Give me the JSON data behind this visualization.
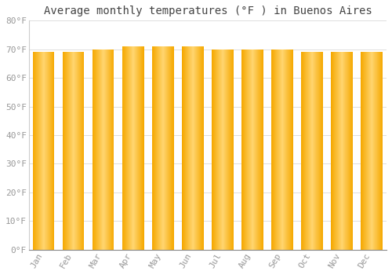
{
  "title": "Average monthly temperatures (°F ) in Buenos Aires",
  "months": [
    "Jan",
    "Feb",
    "Mar",
    "Apr",
    "May",
    "Jun",
    "Jul",
    "Aug",
    "Sep",
    "Oct",
    "Nov",
    "Dec"
  ],
  "values": [
    69,
    69,
    70,
    71,
    71,
    71,
    70,
    70,
    70,
    69,
    69,
    69
  ],
  "ylim": [
    0,
    80
  ],
  "yticks": [
    0,
    10,
    20,
    30,
    40,
    50,
    60,
    70,
    80
  ],
  "ytick_labels": [
    "0°F",
    "10°F",
    "20°F",
    "30°F",
    "40°F",
    "50°F",
    "60°F",
    "70°F",
    "80°F"
  ],
  "bar_color_left": "#F5A800",
  "bar_color_center": "#FFD060",
  "background_color": "#FFFFFF",
  "plot_bg_color": "#FFFFFF",
  "grid_color": "#DDDDDD",
  "title_fontsize": 10,
  "tick_fontsize": 8,
  "tick_color": "#999999",
  "spine_color": "#CCCCCC"
}
